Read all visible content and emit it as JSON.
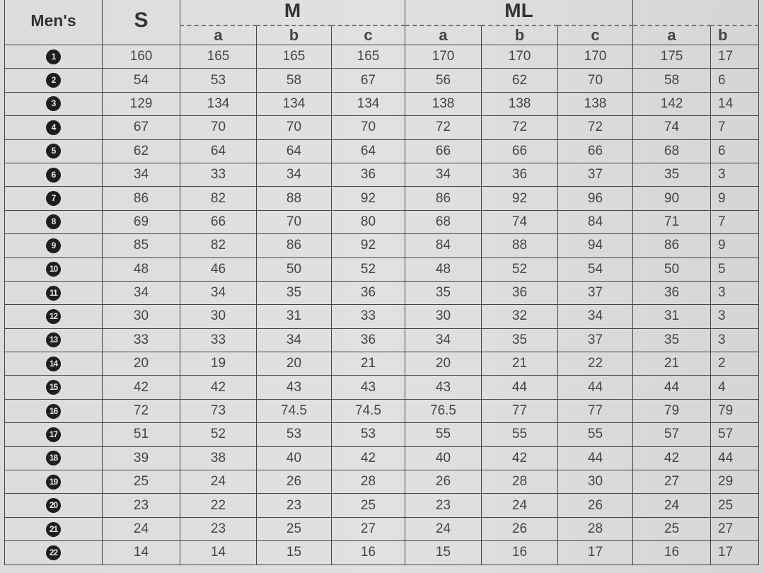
{
  "corner_label": "Men's",
  "groups": [
    {
      "label": "S"
    },
    {
      "label": "M",
      "subs": [
        "a",
        "b",
        "c"
      ]
    },
    {
      "label": "ML",
      "subs": [
        "a",
        "b",
        "c"
      ]
    },
    {
      "label": "",
      "subs": [
        "a",
        "b"
      ]
    }
  ],
  "rows": [
    {
      "n": "1",
      "v": [
        "160",
        "165",
        "165",
        "165",
        "170",
        "170",
        "170",
        "175",
        "17"
      ]
    },
    {
      "n": "2",
      "v": [
        "54",
        "53",
        "58",
        "67",
        "56",
        "62",
        "70",
        "58",
        "6"
      ]
    },
    {
      "n": "3",
      "v": [
        "129",
        "134",
        "134",
        "134",
        "138",
        "138",
        "138",
        "142",
        "14"
      ]
    },
    {
      "n": "4",
      "v": [
        "67",
        "70",
        "70",
        "70",
        "72",
        "72",
        "72",
        "74",
        "7"
      ]
    },
    {
      "n": "5",
      "v": [
        "62",
        "64",
        "64",
        "64",
        "66",
        "66",
        "66",
        "68",
        "6"
      ]
    },
    {
      "n": "6",
      "v": [
        "34",
        "33",
        "34",
        "36",
        "34",
        "36",
        "37",
        "35",
        "3"
      ]
    },
    {
      "n": "7",
      "v": [
        "86",
        "82",
        "88",
        "92",
        "86",
        "92",
        "96",
        "90",
        "9"
      ]
    },
    {
      "n": "8",
      "v": [
        "69",
        "66",
        "70",
        "80",
        "68",
        "74",
        "84",
        "71",
        "7"
      ]
    },
    {
      "n": "9",
      "v": [
        "85",
        "82",
        "86",
        "92",
        "84",
        "88",
        "94",
        "86",
        "9"
      ]
    },
    {
      "n": "10",
      "v": [
        "48",
        "46",
        "50",
        "52",
        "48",
        "52",
        "54",
        "50",
        "5"
      ]
    },
    {
      "n": "11",
      "v": [
        "34",
        "34",
        "35",
        "36",
        "35",
        "36",
        "37",
        "36",
        "3"
      ]
    },
    {
      "n": "12",
      "v": [
        "30",
        "30",
        "31",
        "33",
        "30",
        "32",
        "34",
        "31",
        "3"
      ]
    },
    {
      "n": "13",
      "v": [
        "33",
        "33",
        "34",
        "36",
        "34",
        "35",
        "37",
        "35",
        "3"
      ]
    },
    {
      "n": "14",
      "v": [
        "20",
        "19",
        "20",
        "21",
        "20",
        "21",
        "22",
        "21",
        "2"
      ]
    },
    {
      "n": "15",
      "v": [
        "42",
        "42",
        "43",
        "43",
        "43",
        "44",
        "44",
        "44",
        "4"
      ]
    },
    {
      "n": "16",
      "v": [
        "72",
        "73",
        "74.5",
        "74.5",
        "76.5",
        "77",
        "77",
        "79",
        "79"
      ]
    },
    {
      "n": "17",
      "v": [
        "51",
        "52",
        "53",
        "53",
        "55",
        "55",
        "55",
        "57",
        "57"
      ]
    },
    {
      "n": "18",
      "v": [
        "39",
        "38",
        "40",
        "42",
        "40",
        "42",
        "44",
        "42",
        "44"
      ]
    },
    {
      "n": "19",
      "v": [
        "25",
        "24",
        "26",
        "28",
        "26",
        "28",
        "30",
        "27",
        "29"
      ]
    },
    {
      "n": "20",
      "v": [
        "23",
        "22",
        "23",
        "25",
        "23",
        "24",
        "26",
        "24",
        "25"
      ]
    },
    {
      "n": "21",
      "v": [
        "24",
        "23",
        "25",
        "27",
        "24",
        "26",
        "28",
        "25",
        "27"
      ]
    },
    {
      "n": "22",
      "v": [
        "14",
        "14",
        "15",
        "16",
        "15",
        "16",
        "17",
        "16",
        "17"
      ]
    }
  ]
}
